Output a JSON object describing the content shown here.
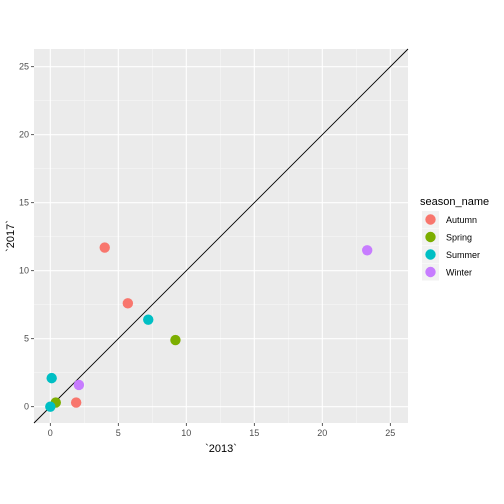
{
  "chart_data": {
    "type": "scatter",
    "xlabel": "`2013`",
    "ylabel": "`2017`",
    "xlim": [
      -1.2,
      26.3
    ],
    "ylim": [
      -1.2,
      26.3
    ],
    "x_ticks": [
      0,
      5,
      10,
      15,
      20,
      25
    ],
    "y_ticks": [
      0,
      5,
      10,
      15,
      20,
      25
    ],
    "x_tick_labels": [
      "0",
      "5",
      "10",
      "15",
      "20",
      "25"
    ],
    "y_tick_labels": [
      "0",
      "5",
      "10",
      "15",
      "20",
      "25"
    ],
    "grid": true,
    "reference_line": {
      "slope": 1,
      "intercept": 0
    },
    "legend": {
      "title": "season_name",
      "position": "right"
    },
    "series": [
      {
        "name": "Autumn",
        "color": "#F8766D",
        "points": [
          {
            "x": 4.0,
            "y": 11.7
          },
          {
            "x": 5.7,
            "y": 7.6
          },
          {
            "x": 1.9,
            "y": 0.3
          }
        ]
      },
      {
        "name": "Spring",
        "color": "#7CAE00",
        "points": [
          {
            "x": 9.2,
            "y": 4.9
          },
          {
            "x": 0.4,
            "y": 0.3
          }
        ]
      },
      {
        "name": "Summer",
        "color": "#00BFC4",
        "points": [
          {
            "x": 7.2,
            "y": 6.4
          },
          {
            "x": 0.1,
            "y": 2.1
          },
          {
            "x": 0.0,
            "y": 0.0
          }
        ]
      },
      {
        "name": "Winter",
        "color": "#C77CFF",
        "points": [
          {
            "x": 23.3,
            "y": 11.5
          },
          {
            "x": 2.1,
            "y": 1.6
          }
        ]
      }
    ]
  }
}
